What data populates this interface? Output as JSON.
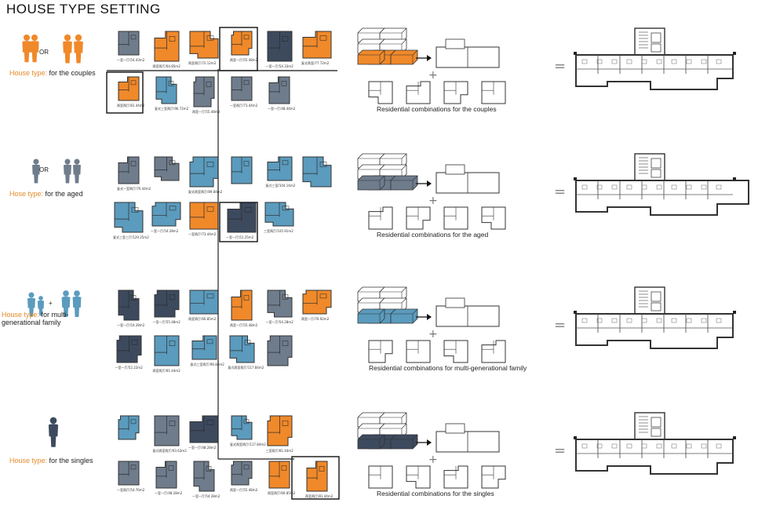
{
  "title": "HOUSE TYPE SETTING",
  "colors": {
    "orange": "#f0892a",
    "blue": "#5b9bbd",
    "gray": "#6f7c8c",
    "dark": "#3d4a5e",
    "wall": "#555555"
  },
  "or_text": "OR",
  "plus_sign": "+",
  "arrow_glyph": "→",
  "equals_sign": "=",
  "rows": [
    {
      "label_key": "House type:",
      "label_rest": " for the couples",
      "caption": "Residential combinations for the couples",
      "units_top": [
        {
          "color": "gray",
          "label": "一室一厅/54.43m2"
        },
        {
          "color": "orange",
          "label": "两室两厅/64.85m2"
        },
        {
          "color": "orange",
          "label": "两室两厅/72.12m2"
        },
        {
          "color": "orange",
          "label": "两室一厅/55.48m2"
        },
        {
          "color": "dark",
          "label": "一室一厅/54.33m2"
        },
        {
          "color": "orange",
          "label": "复式两室/77.72m2"
        }
      ],
      "units_bottom": [
        {
          "color": "orange",
          "label": "两室两厅/81.44m2"
        },
        {
          "color": "blue",
          "label": "复式三室两厅/96.72m2"
        },
        {
          "color": "gray",
          "label": "两室一厅/55.48m2"
        },
        {
          "color": "gray",
          "label": "一室两厅/73.44m2"
        },
        {
          "color": "gray",
          "label": "一室一厅/48.44m2"
        }
      ]
    },
    {
      "label_key": "Hose type:",
      "label_rest": " for the aged",
      "caption": "Residential combinations for the aged",
      "units_top": [
        {
          "color": "gray",
          "label": "复式一室两厅/76.44m2"
        },
        {
          "color": "gray",
          "label": ""
        },
        {
          "color": "blue",
          "label": "复式两室两厅/89.84m2"
        },
        {
          "color": "blue",
          "label": ""
        },
        {
          "color": "blue",
          "label": "复式三室/104.14m2"
        },
        {
          "color": "blue",
          "label": ""
        }
      ],
      "units_bottom": [
        {
          "color": "blue",
          "label": "复式三室三厅/129.25m2"
        },
        {
          "color": "blue",
          "label": "一室一厅/54.28m2"
        },
        {
          "color": "orange",
          "label": "一室两厅/73.44m2"
        },
        {
          "color": "dark",
          "label": "一室一厅/51.25m2"
        },
        {
          "color": "blue",
          "label": "三室两厅/105.91m2"
        }
      ]
    },
    {
      "label_key": "House type:",
      "label_rest": " for multi-generational family",
      "caption": "Residential combinations for multi-generational family",
      "units_top": [
        {
          "color": "dark",
          "label": "一室一厅/54.28m2"
        },
        {
          "color": "dark",
          "label": "一室一厅/55.48m2"
        },
        {
          "color": "blue",
          "label": "两室两厅/66.85m2"
        },
        {
          "color": "orange",
          "label": "两室一厅/55.48m2"
        },
        {
          "color": "gray",
          "label": "一室一厅/54.28m2"
        },
        {
          "color": "orange",
          "label": "两室一厅/76.92m2"
        }
      ],
      "units_bottom": [
        {
          "color": "dark",
          "label": "一室一厅/52.22m2"
        },
        {
          "color": "blue",
          "label": "两室两厅/81.44m2"
        },
        {
          "color": "blue",
          "label": "复式三室两厅/96.84m2"
        },
        {
          "color": "blue",
          "label": "复式两室两厅/117.84m2"
        },
        {
          "color": "gray",
          "label": ""
        }
      ]
    },
    {
      "label_key": "House type:",
      "label_rest": " for the singles",
      "caption": "Residential combinations for the singles",
      "units_top": [
        {
          "color": "blue",
          "label": ""
        },
        {
          "color": "gray",
          "label": "复式两室两厅/93.63m2"
        },
        {
          "color": "dark",
          "label": "一室一厅/48.28m2"
        },
        {
          "color": "blue",
          "label": "复式两室两厅/117.84m2"
        },
        {
          "color": "orange",
          "label": "三室两厅/81.44m2"
        }
      ],
      "units_bottom": [
        {
          "color": "gray",
          "label": "一室两厅/54.76m2"
        },
        {
          "color": "gray",
          "label": "一室一厅/48.28m2"
        },
        {
          "color": "gray",
          "label": "一室一厅/54.28m2"
        },
        {
          "color": "gray",
          "label": "两室一厅/55.48m2"
        },
        {
          "color": "orange",
          "label": "两室两厅/66.85m2"
        },
        {
          "color": "orange",
          "label": "两室两厅/81.44m2"
        }
      ]
    }
  ]
}
